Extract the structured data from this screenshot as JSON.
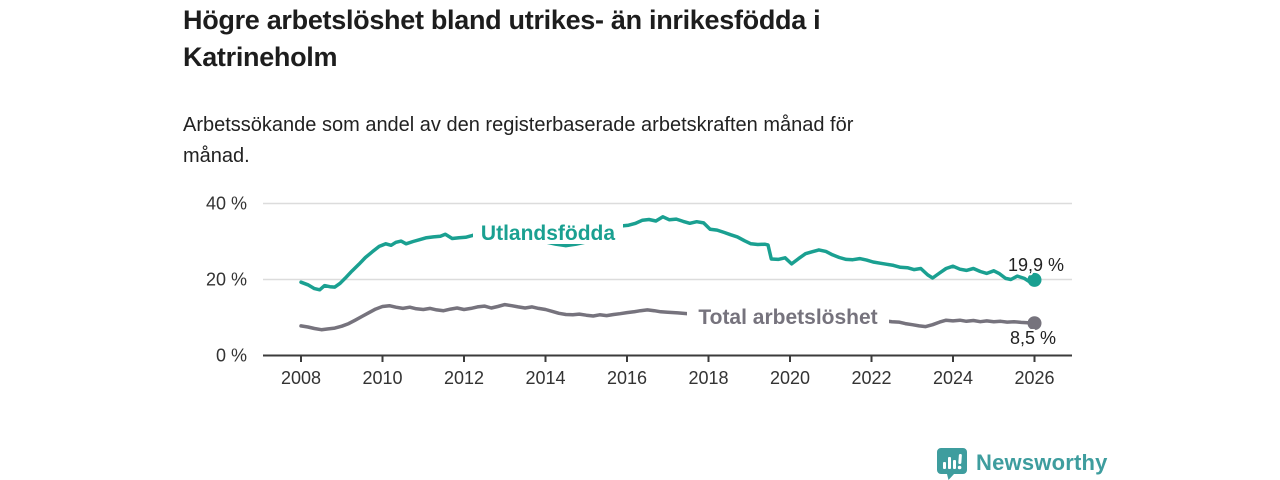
{
  "header": {
    "title_lines": [
      "Högre arbetslöshet bland utrikes- än inrikesfödda i",
      "Katrineholm"
    ],
    "subtitle_lines": [
      "Arbetssökande som andel av den registerbaserade arbetskraften månad för",
      "månad."
    ]
  },
  "footer": {
    "brand": "Newsworthy",
    "logo_icon": "speech-bubble-bar-chart-icon",
    "brand_color": "#3e9d9e"
  },
  "chart_data": {
    "type": "line",
    "unit": "%",
    "grid": "horizontal-only",
    "legend_position": "inline-labels-on-lines",
    "x_axis": {
      "ticks": [
        2008,
        2010,
        2012,
        2014,
        2016,
        2018,
        2020,
        2022,
        2024,
        2026
      ],
      "range": [
        2007.1,
        2026.9
      ]
    },
    "y_axis": {
      "ticks": [
        {
          "value": 40,
          "label": "40 %"
        },
        {
          "value": 20,
          "label": "20 %"
        },
        {
          "value": 0,
          "label": "0 %"
        }
      ],
      "range": [
        0,
        40
      ]
    },
    "colors": {
      "axis": "#3b3b3b",
      "gridline": "#dcdcdc",
      "tick_text": "#333333",
      "value_label_text": "#222222"
    },
    "series": [
      {
        "name": "Utlandsfödda",
        "color": "#1aa091",
        "end_label": "19,9 %",
        "end_value": 19.9,
        "points": [
          [
            2008.0,
            19.3
          ],
          [
            2008.17,
            18.6
          ],
          [
            2008.33,
            17.6
          ],
          [
            2008.46,
            17.3
          ],
          [
            2008.58,
            18.4
          ],
          [
            2008.71,
            18.1
          ],
          [
            2008.83,
            18.0
          ],
          [
            2008.96,
            19.0
          ],
          [
            2009.08,
            20.3
          ],
          [
            2009.25,
            22.2
          ],
          [
            2009.42,
            24.0
          ],
          [
            2009.58,
            25.8
          ],
          [
            2009.75,
            27.3
          ],
          [
            2009.92,
            28.7
          ],
          [
            2010.08,
            29.4
          ],
          [
            2010.21,
            29.0
          ],
          [
            2010.33,
            29.8
          ],
          [
            2010.46,
            30.1
          ],
          [
            2010.58,
            29.4
          ],
          [
            2010.75,
            30.0
          ],
          [
            2010.92,
            30.5
          ],
          [
            2011.08,
            31.0
          ],
          [
            2011.25,
            31.2
          ],
          [
            2011.42,
            31.4
          ],
          [
            2011.54,
            31.9
          ],
          [
            2011.71,
            30.8
          ],
          [
            2011.88,
            31.0
          ],
          [
            2012.04,
            31.1
          ],
          [
            2012.21,
            31.6
          ],
          [
            2012.38,
            32.2
          ],
          [
            2012.54,
            32.0
          ],
          [
            2012.71,
            31.4
          ],
          [
            2012.88,
            31.8
          ],
          [
            2013.04,
            32.2
          ],
          [
            2013.25,
            31.4
          ],
          [
            2013.5,
            30.7
          ],
          [
            2013.75,
            30.1
          ],
          [
            2014.0,
            29.9
          ],
          [
            2014.25,
            29.3
          ],
          [
            2014.5,
            28.9
          ],
          [
            2014.75,
            29.3
          ],
          [
            2015.0,
            29.9
          ],
          [
            2015.25,
            30.7
          ],
          [
            2015.5,
            31.9
          ],
          [
            2015.71,
            33.1
          ],
          [
            2015.88,
            34.1
          ],
          [
            2016.04,
            34.3
          ],
          [
            2016.21,
            34.8
          ],
          [
            2016.38,
            35.6
          ],
          [
            2016.54,
            35.8
          ],
          [
            2016.71,
            35.4
          ],
          [
            2016.88,
            36.5
          ],
          [
            2017.04,
            35.7
          ],
          [
            2017.21,
            35.9
          ],
          [
            2017.38,
            35.3
          ],
          [
            2017.54,
            34.8
          ],
          [
            2017.71,
            35.2
          ],
          [
            2017.88,
            34.9
          ],
          [
            2018.04,
            33.2
          ],
          [
            2018.21,
            33.0
          ],
          [
            2018.38,
            32.4
          ],
          [
            2018.54,
            31.8
          ],
          [
            2018.71,
            31.2
          ],
          [
            2018.88,
            30.2
          ],
          [
            2019.04,
            29.4
          ],
          [
            2019.21,
            29.2
          ],
          [
            2019.38,
            29.3
          ],
          [
            2019.46,
            29.1
          ],
          [
            2019.54,
            25.4
          ],
          [
            2019.71,
            25.3
          ],
          [
            2019.88,
            25.7
          ],
          [
            2020.04,
            24.1
          ],
          [
            2020.21,
            25.5
          ],
          [
            2020.38,
            26.8
          ],
          [
            2020.54,
            27.3
          ],
          [
            2020.71,
            27.8
          ],
          [
            2020.88,
            27.4
          ],
          [
            2021.04,
            26.5
          ],
          [
            2021.21,
            25.8
          ],
          [
            2021.38,
            25.3
          ],
          [
            2021.54,
            25.2
          ],
          [
            2021.71,
            25.5
          ],
          [
            2021.88,
            25.1
          ],
          [
            2022.04,
            24.6
          ],
          [
            2022.21,
            24.3
          ],
          [
            2022.38,
            24.0
          ],
          [
            2022.54,
            23.7
          ],
          [
            2022.71,
            23.2
          ],
          [
            2022.88,
            23.1
          ],
          [
            2023.04,
            22.6
          ],
          [
            2023.21,
            22.9
          ],
          [
            2023.38,
            21.2
          ],
          [
            2023.5,
            20.4
          ],
          [
            2023.67,
            21.7
          ],
          [
            2023.83,
            22.9
          ],
          [
            2024.0,
            23.5
          ],
          [
            2024.17,
            22.7
          ],
          [
            2024.33,
            22.4
          ],
          [
            2024.5,
            22.9
          ],
          [
            2024.67,
            22.1
          ],
          [
            2024.83,
            21.6
          ],
          [
            2025.0,
            22.3
          ],
          [
            2025.13,
            21.6
          ],
          [
            2025.29,
            20.3
          ],
          [
            2025.42,
            20.0
          ],
          [
            2025.58,
            20.9
          ],
          [
            2025.75,
            20.3
          ],
          [
            2025.88,
            19.4
          ],
          [
            2026.0,
            19.9
          ]
        ]
      },
      {
        "name": "Total arbetslöshet",
        "color": "#76737d",
        "end_label": "8,5 %",
        "end_value": 8.5,
        "points": [
          [
            2008.0,
            7.8
          ],
          [
            2008.17,
            7.5
          ],
          [
            2008.33,
            7.1
          ],
          [
            2008.5,
            6.8
          ],
          [
            2008.67,
            7.0
          ],
          [
            2008.83,
            7.2
          ],
          [
            2009.0,
            7.7
          ],
          [
            2009.17,
            8.4
          ],
          [
            2009.33,
            9.3
          ],
          [
            2009.5,
            10.3
          ],
          [
            2009.67,
            11.3
          ],
          [
            2009.83,
            12.2
          ],
          [
            2010.0,
            12.9
          ],
          [
            2010.17,
            13.1
          ],
          [
            2010.33,
            12.7
          ],
          [
            2010.5,
            12.4
          ],
          [
            2010.67,
            12.7
          ],
          [
            2010.83,
            12.3
          ],
          [
            2011.0,
            12.1
          ],
          [
            2011.17,
            12.4
          ],
          [
            2011.33,
            12.0
          ],
          [
            2011.5,
            11.8
          ],
          [
            2011.67,
            12.2
          ],
          [
            2011.83,
            12.5
          ],
          [
            2012.0,
            12.1
          ],
          [
            2012.17,
            12.4
          ],
          [
            2012.33,
            12.8
          ],
          [
            2012.5,
            13.0
          ],
          [
            2012.67,
            12.5
          ],
          [
            2012.83,
            12.9
          ],
          [
            2013.0,
            13.4
          ],
          [
            2013.17,
            13.1
          ],
          [
            2013.33,
            12.8
          ],
          [
            2013.5,
            12.5
          ],
          [
            2013.67,
            12.8
          ],
          [
            2013.83,
            12.4
          ],
          [
            2014.0,
            12.1
          ],
          [
            2014.17,
            11.6
          ],
          [
            2014.33,
            11.1
          ],
          [
            2014.5,
            10.8
          ],
          [
            2014.67,
            10.7
          ],
          [
            2014.83,
            10.9
          ],
          [
            2015.0,
            10.6
          ],
          [
            2015.17,
            10.4
          ],
          [
            2015.33,
            10.7
          ],
          [
            2015.5,
            10.5
          ],
          [
            2015.67,
            10.8
          ],
          [
            2015.83,
            11.0
          ],
          [
            2016.0,
            11.3
          ],
          [
            2016.17,
            11.5
          ],
          [
            2016.33,
            11.8
          ],
          [
            2016.5,
            12.0
          ],
          [
            2016.67,
            11.8
          ],
          [
            2016.83,
            11.5
          ],
          [
            2017.0,
            11.4
          ],
          [
            2017.25,
            11.2
          ],
          [
            2017.5,
            11.0
          ],
          [
            2018.0,
            10.9
          ],
          [
            2018.5,
            10.7
          ],
          [
            2019.0,
            10.4
          ],
          [
            2019.5,
            10.2
          ],
          [
            2020.0,
            10.6
          ],
          [
            2020.5,
            11.2
          ],
          [
            2021.0,
            10.8
          ],
          [
            2021.5,
            10.2
          ],
          [
            2022.0,
            9.6
          ],
          [
            2022.25,
            9.2
          ],
          [
            2022.5,
            8.9
          ],
          [
            2022.67,
            8.8
          ],
          [
            2022.83,
            8.4
          ],
          [
            2023.0,
            8.1
          ],
          [
            2023.17,
            7.8
          ],
          [
            2023.33,
            7.6
          ],
          [
            2023.5,
            8.1
          ],
          [
            2023.67,
            8.8
          ],
          [
            2023.83,
            9.3
          ],
          [
            2024.0,
            9.1
          ],
          [
            2024.17,
            9.3
          ],
          [
            2024.33,
            9.0
          ],
          [
            2024.5,
            9.2
          ],
          [
            2024.67,
            8.9
          ],
          [
            2024.83,
            9.1
          ],
          [
            2025.0,
            8.9
          ],
          [
            2025.17,
            9.0
          ],
          [
            2025.33,
            8.8
          ],
          [
            2025.5,
            8.9
          ],
          [
            2025.67,
            8.7
          ],
          [
            2025.83,
            8.6
          ],
          [
            2026.0,
            8.5
          ]
        ]
      }
    ]
  }
}
